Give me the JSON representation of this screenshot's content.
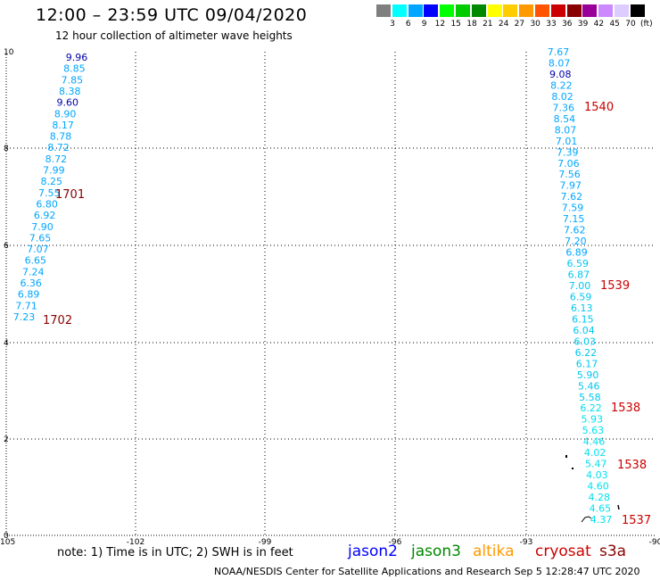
{
  "title": "12:00 – 23:59 UTC 09/04/2020",
  "subtitle": "12 hour collection of altimeter wave heights",
  "color_scale": {
    "labels": [
      "3",
      "6",
      "9",
      "12",
      "15",
      "18",
      "21",
      "24",
      "27",
      "30",
      "33",
      "36",
      "39",
      "42",
      "45",
      "70",
      "(ft)"
    ],
    "colors": [
      "#7f7f7f",
      "#00ffff",
      "#00a6ff",
      "#0000ff",
      "#00ff00",
      "#00cc00",
      "#008800",
      "#ffff00",
      "#ffcc00",
      "#ff9900",
      "#ff5500",
      "#cc0000",
      "#880000",
      "#990099",
      "#cc88ff",
      "#ddccff",
      "#000000"
    ]
  },
  "axes": {
    "y_labels": [
      "10",
      "8",
      "6",
      "4",
      "2",
      "0"
    ],
    "x_labels": [
      "-105",
      "-102",
      "-99",
      "-96",
      "-93",
      "-90"
    ]
  },
  "track_west": {
    "color": "#00a6ff",
    "values": [
      "9.96",
      "8.85",
      "7.85",
      "8.38",
      "9.60",
      "8.90",
      "8.17",
      "8.78",
      "8.72",
      "8.72",
      "7.99",
      "8.25",
      "7.55",
      "6.80",
      "6.92",
      "7.90",
      "7.65",
      "7.07",
      "6.65",
      "7.24",
      "6.36",
      "6.89",
      "7.71",
      "7.23"
    ],
    "dark_values": [
      "9.96",
      "9.60"
    ]
  },
  "track_east": {
    "values": [
      "7.67",
      "8.07",
      "9.08",
      "8.22",
      "8.02",
      "7.36",
      "8.54",
      "8.07",
      "7.01",
      "7.39",
      "7.06",
      "7.56",
      "7.97",
      "7.62",
      "7.59",
      "7.15",
      "7.62",
      "7.20",
      "6.89",
      "6.59",
      "6.87",
      "7.00",
      "6.59",
      "6.13",
      "6.15",
      "6.04",
      "6.03",
      "6.22",
      "6.17",
      "5.90",
      "5.46",
      "5.58",
      "6.22",
      "5.93",
      "5.63",
      "4.46",
      "4.02",
      "5.47",
      "4.03",
      "4.60",
      "4.28",
      "4.65",
      "4.37"
    ],
    "dark_values": [
      "9.08"
    ]
  },
  "time_markers": [
    {
      "label": "1701",
      "color": "#880000"
    },
    {
      "label": "1702",
      "color": "#880000"
    },
    {
      "label": "1540",
      "color": "#cc0000"
    },
    {
      "label": "1539",
      "color": "#cc0000"
    },
    {
      "label": "1538",
      "color": "#cc0000"
    },
    {
      "label": "1538",
      "color": "#cc0000"
    },
    {
      "label": "1537",
      "color": "#cc0000"
    }
  ],
  "note": "note:  1) Time is in UTC; 2) SWH is in feet",
  "satellites": [
    {
      "name": "jason2",
      "color": "#0000ff"
    },
    {
      "name": "jason3",
      "color": "#008800"
    },
    {
      "name": "altika",
      "color": "#ff9900"
    },
    {
      "name": "cryosat",
      "color": "#cc0000"
    },
    {
      "name": "s3a",
      "color": "#880000"
    }
  ],
  "credit": "NOAA/NESDIS Center for Satellite Applications and Research   Sep  5 12:28:47 UTC 2020"
}
